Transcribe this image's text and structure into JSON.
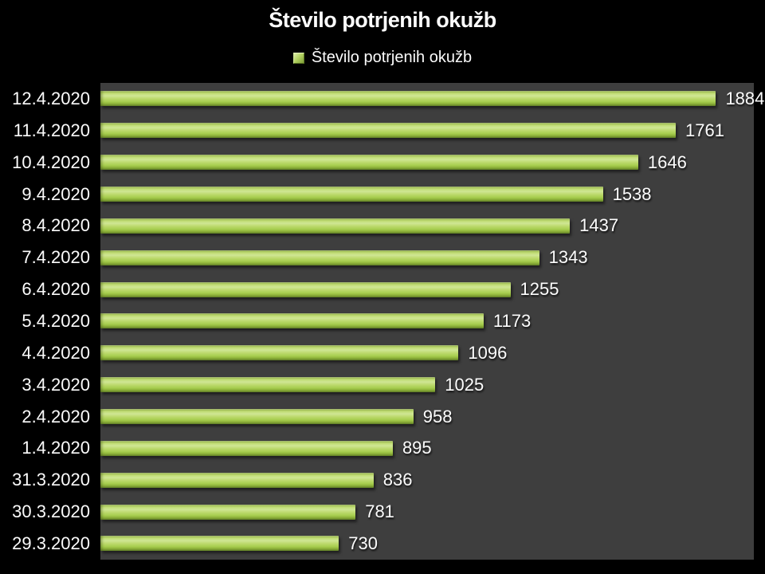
{
  "chart_data": {
    "type": "bar",
    "orientation": "horizontal",
    "title": "Število potrjenih okužb",
    "legend_entries": [
      "Število potrjenih okužb"
    ],
    "legend_position": "top",
    "categories": [
      "12.4.2020",
      "11.4.2020",
      "10.4.2020",
      "9.4.2020",
      "8.4.2020",
      "7.4.2020",
      "6.4.2020",
      "5.4.2020",
      "4.4.2020",
      "3.4.2020",
      "2.4.2020",
      "1.4.2020",
      "31.3.2020",
      "30.3.2020",
      "29.3.2020"
    ],
    "values": [
      1884,
      1761,
      1646,
      1538,
      1437,
      1343,
      1255,
      1173,
      1096,
      1025,
      958,
      895,
      836,
      781,
      730
    ],
    "xlabel": "",
    "ylabel": "",
    "xlim": [
      0,
      2000
    ],
    "grid": false,
    "data_labels": true,
    "colors": {
      "page_background": "#000000",
      "plot_background": "#3E3E3E",
      "bar_light": "#CFE694",
      "bar_mid": "#A6CD4E",
      "bar_dark": "#63812A",
      "text": "#FCFCFC"
    }
  }
}
